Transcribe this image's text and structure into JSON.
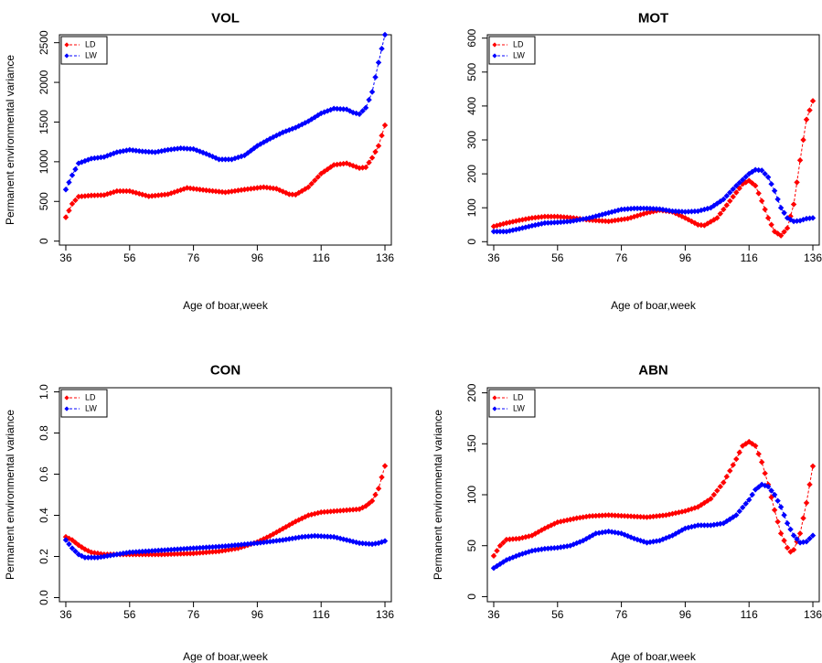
{
  "colors": {
    "LD": "#ff0000",
    "LW": "#0000ff"
  },
  "chart_data": [
    {
      "type": "scatter",
      "title": "VOL",
      "xlabel": "Age of boar,week",
      "ylabel": "Permanent environmental variance",
      "xlim": [
        34,
        138
      ],
      "ylim": [
        -50,
        2600
      ],
      "xticks": [
        36,
        56,
        76,
        96,
        116,
        136
      ],
      "yticks": [
        0,
        500,
        1000,
        1500,
        2000,
        2500
      ],
      "legend_position": "top-left",
      "series": [
        {
          "name": "LD",
          "knots": [
            [
              36,
              300
            ],
            [
              38,
              470
            ],
            [
              40,
              560
            ],
            [
              44,
              575
            ],
            [
              48,
              580
            ],
            [
              52,
              630
            ],
            [
              56,
              630
            ],
            [
              62,
              565
            ],
            [
              68,
              590
            ],
            [
              74,
              670
            ],
            [
              80,
              640
            ],
            [
              86,
              615
            ],
            [
              92,
              650
            ],
            [
              98,
              680
            ],
            [
              102,
              660
            ],
            [
              106,
              590
            ],
            [
              108,
              585
            ],
            [
              112,
              680
            ],
            [
              116,
              850
            ],
            [
              120,
              960
            ],
            [
              124,
              980
            ],
            [
              128,
              920
            ],
            [
              130,
              930
            ],
            [
              132,
              1050
            ],
            [
              134,
              1200
            ],
            [
              136,
              1460
            ]
          ]
        },
        {
          "name": "LW",
          "knots": [
            [
              36,
              650
            ],
            [
              38,
              830
            ],
            [
              40,
              980
            ],
            [
              44,
              1040
            ],
            [
              48,
              1060
            ],
            [
              52,
              1120
            ],
            [
              56,
              1150
            ],
            [
              60,
              1130
            ],
            [
              64,
              1120
            ],
            [
              68,
              1150
            ],
            [
              72,
              1170
            ],
            [
              76,
              1160
            ],
            [
              80,
              1100
            ],
            [
              84,
              1030
            ],
            [
              88,
              1030
            ],
            [
              92,
              1080
            ],
            [
              96,
              1200
            ],
            [
              100,
              1290
            ],
            [
              104,
              1370
            ],
            [
              108,
              1430
            ],
            [
              112,
              1510
            ],
            [
              116,
              1610
            ],
            [
              120,
              1670
            ],
            [
              124,
              1660
            ],
            [
              126,
              1620
            ],
            [
              128,
              1600
            ],
            [
              130,
              1680
            ],
            [
              132,
              1880
            ],
            [
              134,
              2250
            ],
            [
              136,
              2600
            ]
          ]
        }
      ]
    },
    {
      "type": "scatter",
      "title": "MOT",
      "xlabel": "Age of boar,week",
      "ylabel": "",
      "xlim": [
        34,
        138
      ],
      "ylim": [
        -10,
        610
      ],
      "xticks": [
        36,
        56,
        76,
        96,
        116,
        136
      ],
      "yticks": [
        0,
        100,
        200,
        300,
        400,
        500,
        600
      ],
      "legend_position": "top-left",
      "series": [
        {
          "name": "LD",
          "knots": [
            [
              36,
              45
            ],
            [
              40,
              55
            ],
            [
              44,
              63
            ],
            [
              48,
              70
            ],
            [
              52,
              74
            ],
            [
              56,
              74
            ],
            [
              60,
              71
            ],
            [
              66,
              64
            ],
            [
              72,
              60
            ],
            [
              78,
              68
            ],
            [
              84,
              85
            ],
            [
              88,
              93
            ],
            [
              92,
              88
            ],
            [
              96,
              70
            ],
            [
              100,
              50
            ],
            [
              102,
              48
            ],
            [
              106,
              70
            ],
            [
              110,
              120
            ],
            [
              114,
              170
            ],
            [
              116,
              180
            ],
            [
              118,
              165
            ],
            [
              120,
              120
            ],
            [
              122,
              70
            ],
            [
              124,
              30
            ],
            [
              126,
              18
            ],
            [
              128,
              40
            ],
            [
              130,
              110
            ],
            [
              132,
              240
            ],
            [
              134,
              360
            ],
            [
              136,
              415
            ]
          ]
        },
        {
          "name": "LW",
          "knots": [
            [
              36,
              30
            ],
            [
              40,
              30
            ],
            [
              44,
              38
            ],
            [
              48,
              47
            ],
            [
              52,
              55
            ],
            [
              56,
              57
            ],
            [
              60,
              60
            ],
            [
              66,
              70
            ],
            [
              72,
              85
            ],
            [
              76,
              95
            ],
            [
              80,
              98
            ],
            [
              84,
              98
            ],
            [
              88,
              96
            ],
            [
              92,
              90
            ],
            [
              96,
              88
            ],
            [
              100,
              90
            ],
            [
              104,
              100
            ],
            [
              108,
              125
            ],
            [
              112,
              165
            ],
            [
              116,
              200
            ],
            [
              118,
              212
            ],
            [
              120,
              210
            ],
            [
              122,
              190
            ],
            [
              124,
              150
            ],
            [
              126,
              100
            ],
            [
              128,
              70
            ],
            [
              130,
              60
            ],
            [
              132,
              62
            ],
            [
              134,
              68
            ],
            [
              136,
              70
            ]
          ]
        }
      ]
    },
    {
      "type": "scatter",
      "title": "CON",
      "xlabel": "Age of boar,week",
      "ylabel": "Permanent environmental variance",
      "xlim": [
        34,
        138
      ],
      "ylim": [
        -0.02,
        1.02
      ],
      "xticks": [
        36,
        56,
        76,
        96,
        116,
        136
      ],
      "yticks": [
        0.0,
        0.2,
        0.4,
        0.6,
        0.8,
        1.0
      ],
      "ytick_labels": [
        "0.0",
        "0.2",
        "0.4",
        "0.6",
        "0.8",
        "1.0"
      ],
      "legend_position": "top-left",
      "series": [
        {
          "name": "LD",
          "knots": [
            [
              36,
              0.295
            ],
            [
              38,
              0.28
            ],
            [
              40,
              0.255
            ],
            [
              42,
              0.235
            ],
            [
              44,
              0.22
            ],
            [
              48,
              0.21
            ],
            [
              56,
              0.21
            ],
            [
              66,
              0.21
            ],
            [
              76,
              0.215
            ],
            [
              84,
              0.225
            ],
            [
              90,
              0.24
            ],
            [
              96,
              0.27
            ],
            [
              100,
              0.3
            ],
            [
              104,
              0.335
            ],
            [
              108,
              0.37
            ],
            [
              112,
              0.4
            ],
            [
              116,
              0.415
            ],
            [
              120,
              0.42
            ],
            [
              124,
              0.425
            ],
            [
              128,
              0.43
            ],
            [
              130,
              0.445
            ],
            [
              132,
              0.47
            ],
            [
              134,
              0.53
            ],
            [
              136,
              0.64
            ]
          ]
        },
        {
          "name": "LW",
          "knots": [
            [
              36,
              0.28
            ],
            [
              38,
              0.24
            ],
            [
              40,
              0.21
            ],
            [
              42,
              0.195
            ],
            [
              46,
              0.195
            ],
            [
              50,
              0.205
            ],
            [
              56,
              0.22
            ],
            [
              66,
              0.23
            ],
            [
              76,
              0.24
            ],
            [
              86,
              0.25
            ],
            [
              96,
              0.265
            ],
            [
              104,
              0.28
            ],
            [
              110,
              0.295
            ],
            [
              114,
              0.3
            ],
            [
              120,
              0.295
            ],
            [
              124,
              0.28
            ],
            [
              128,
              0.265
            ],
            [
              132,
              0.26
            ],
            [
              134,
              0.265
            ],
            [
              136,
              0.275
            ]
          ]
        }
      ]
    },
    {
      "type": "scatter",
      "title": "ABN",
      "xlabel": "Age of boar,week",
      "ylabel": "Permanent environmental variance",
      "xlim": [
        34,
        138
      ],
      "ylim": [
        -5,
        205
      ],
      "xticks": [
        36,
        56,
        76,
        96,
        116,
        136
      ],
      "yticks": [
        0,
        50,
        100,
        150,
        200
      ],
      "legend_position": "top-left",
      "series": [
        {
          "name": "LD",
          "knots": [
            [
              36,
              40
            ],
            [
              38,
              50
            ],
            [
              40,
              56
            ],
            [
              44,
              57
            ],
            [
              48,
              60
            ],
            [
              52,
              67
            ],
            [
              56,
              73
            ],
            [
              62,
              77
            ],
            [
              66,
              79
            ],
            [
              72,
              80
            ],
            [
              78,
              79
            ],
            [
              84,
              78
            ],
            [
              90,
              80
            ],
            [
              96,
              84
            ],
            [
              100,
              88
            ],
            [
              104,
              96
            ],
            [
              108,
              112
            ],
            [
              112,
              135
            ],
            [
              114,
              148
            ],
            [
              116,
              152
            ],
            [
              118,
              148
            ],
            [
              120,
              132
            ],
            [
              122,
              110
            ],
            [
              124,
              85
            ],
            [
              126,
              62
            ],
            [
              128,
              48
            ],
            [
              129,
              44
            ],
            [
              130,
              46
            ],
            [
              132,
              62
            ],
            [
              134,
              92
            ],
            [
              136,
              128
            ]
          ]
        },
        {
          "name": "LW",
          "knots": [
            [
              36,
              28
            ],
            [
              40,
              36
            ],
            [
              44,
              41
            ],
            [
              48,
              45
            ],
            [
              52,
              47
            ],
            [
              56,
              48
            ],
            [
              60,
              50
            ],
            [
              64,
              55
            ],
            [
              68,
              62
            ],
            [
              72,
              64
            ],
            [
              76,
              62
            ],
            [
              80,
              57
            ],
            [
              84,
              53
            ],
            [
              88,
              55
            ],
            [
              92,
              60
            ],
            [
              96,
              67
            ],
            [
              100,
              70
            ],
            [
              104,
              70
            ],
            [
              108,
              72
            ],
            [
              112,
              80
            ],
            [
              116,
              95
            ],
            [
              118,
              105
            ],
            [
              120,
              110
            ],
            [
              122,
              108
            ],
            [
              124,
              100
            ],
            [
              126,
              88
            ],
            [
              128,
              72
            ],
            [
              130,
              60
            ],
            [
              132,
              53
            ],
            [
              134,
              54
            ],
            [
              136,
              60
            ]
          ]
        }
      ]
    }
  ]
}
